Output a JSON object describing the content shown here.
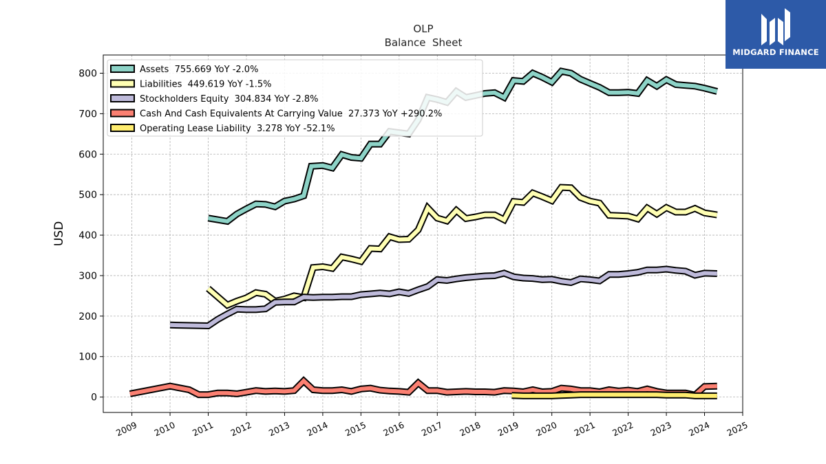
{
  "logo": {
    "text": "MIDGARD FINANCE"
  },
  "chart_data": {
    "type": "line",
    "title": "OLP",
    "subtitle": "Balance  Sheet",
    "xlabel": "",
    "ylabel": "USD",
    "xlim": [
      2008.25,
      2025.0
    ],
    "ylim": [
      -38,
      845
    ],
    "x_ticks": [
      "2009",
      "2010",
      "2011",
      "2012",
      "2013",
      "2014",
      "2015",
      "2016",
      "2017",
      "2018",
      "2019",
      "2020",
      "2021",
      "2022",
      "2023",
      "2024",
      "2025"
    ],
    "y_ticks": [
      "0",
      "100",
      "200",
      "300",
      "400",
      "500",
      "600",
      "700",
      "800"
    ],
    "grid": true,
    "legend_position": "top-left",
    "series": [
      {
        "name": "Assets",
        "legend": "Assets  755.669 YoY -2.0%",
        "color": "#8dd3c7",
        "points": [
          [
            2011.0,
            442
          ],
          [
            2011.5,
            434
          ],
          [
            2011.75,
            452
          ],
          [
            2012.0,
            465
          ],
          [
            2012.25,
            477
          ],
          [
            2012.5,
            476
          ],
          [
            2012.75,
            470
          ],
          [
            2013.0,
            484
          ],
          [
            2013.25,
            489
          ],
          [
            2013.5,
            497
          ],
          [
            2013.7,
            570
          ],
          [
            2014.0,
            572
          ],
          [
            2014.25,
            566
          ],
          [
            2014.5,
            599
          ],
          [
            2014.75,
            592
          ],
          [
            2015.0,
            590
          ],
          [
            2015.25,
            625
          ],
          [
            2015.5,
            625
          ],
          [
            2015.75,
            656
          ],
          [
            2016.0,
            653
          ],
          [
            2016.25,
            650
          ],
          [
            2016.5,
            685
          ],
          [
            2016.75,
            740
          ],
          [
            2017.0,
            735
          ],
          [
            2017.25,
            728
          ],
          [
            2017.5,
            755
          ],
          [
            2017.75,
            740
          ],
          [
            2018.0,
            745
          ],
          [
            2018.25,
            750
          ],
          [
            2018.5,
            752
          ],
          [
            2018.75,
            740
          ],
          [
            2019.0,
            782
          ],
          [
            2019.25,
            780
          ],
          [
            2019.5,
            800
          ],
          [
            2019.75,
            790
          ],
          [
            2020.0,
            778
          ],
          [
            2020.25,
            805
          ],
          [
            2020.5,
            800
          ],
          [
            2020.75,
            785
          ],
          [
            2021.0,
            775
          ],
          [
            2021.25,
            765
          ],
          [
            2021.5,
            752
          ],
          [
            2021.75,
            752
          ],
          [
            2022.0,
            753
          ],
          [
            2022.25,
            750
          ],
          [
            2022.5,
            782
          ],
          [
            2022.75,
            768
          ],
          [
            2023.0,
            784
          ],
          [
            2023.25,
            772
          ],
          [
            2023.5,
            770
          ],
          [
            2023.75,
            768
          ],
          [
            2024.0,
            763
          ],
          [
            2024.33,
            755
          ]
        ]
      },
      {
        "name": "Liabilities",
        "legend": "Liabilities  449.619 YoY -1.5%",
        "color": "#ffffb3",
        "points": [
          [
            2011.0,
            268
          ],
          [
            2011.5,
            227
          ],
          [
            2011.75,
            237
          ],
          [
            2012.0,
            245
          ],
          [
            2012.25,
            258
          ],
          [
            2012.5,
            254
          ],
          [
            2012.75,
            237
          ],
          [
            2013.0,
            242
          ],
          [
            2013.25,
            250
          ],
          [
            2013.5,
            246
          ],
          [
            2013.75,
            320
          ],
          [
            2014.0,
            322
          ],
          [
            2014.25,
            318
          ],
          [
            2014.5,
            346
          ],
          [
            2014.75,
            341
          ],
          [
            2015.0,
            335
          ],
          [
            2015.25,
            367
          ],
          [
            2015.5,
            366
          ],
          [
            2015.75,
            396
          ],
          [
            2016.0,
            389
          ],
          [
            2016.25,
            390
          ],
          [
            2016.5,
            413
          ],
          [
            2016.75,
            467
          ],
          [
            2017.0,
            442
          ],
          [
            2017.25,
            435
          ],
          [
            2017.5,
            461
          ],
          [
            2017.75,
            441
          ],
          [
            2018.0,
            445
          ],
          [
            2018.25,
            450
          ],
          [
            2018.5,
            450
          ],
          [
            2018.75,
            438
          ],
          [
            2019.0,
            483
          ],
          [
            2019.25,
            481
          ],
          [
            2019.5,
            504
          ],
          [
            2019.75,
            495
          ],
          [
            2020.0,
            485
          ],
          [
            2020.25,
            518
          ],
          [
            2020.5,
            517
          ],
          [
            2020.75,
            493
          ],
          [
            2021.0,
            484
          ],
          [
            2021.25,
            479
          ],
          [
            2021.5,
            449
          ],
          [
            2021.75,
            448
          ],
          [
            2022.0,
            447
          ],
          [
            2022.25,
            440
          ],
          [
            2022.5,
            467
          ],
          [
            2022.75,
            452
          ],
          [
            2023.0,
            468
          ],
          [
            2023.25,
            457
          ],
          [
            2023.5,
            457
          ],
          [
            2023.75,
            466
          ],
          [
            2024.0,
            455
          ],
          [
            2024.33,
            450
          ]
        ]
      },
      {
        "name": "Stockholders Equity",
        "legend": "Stockholders Equity  304.834 YoY -2.8%",
        "color": "#bebada",
        "points": [
          [
            2010.0,
            178
          ],
          [
            2011.0,
            176
          ],
          [
            2011.25,
            192
          ],
          [
            2011.5,
            205
          ],
          [
            2011.75,
            217
          ],
          [
            2012.0,
            216
          ],
          [
            2012.25,
            216
          ],
          [
            2012.5,
            218
          ],
          [
            2012.75,
            234
          ],
          [
            2013.0,
            235
          ],
          [
            2013.25,
            235
          ],
          [
            2013.5,
            247
          ],
          [
            2013.75,
            246
          ],
          [
            2014.0,
            247
          ],
          [
            2014.25,
            247
          ],
          [
            2014.5,
            248
          ],
          [
            2014.75,
            248
          ],
          [
            2015.0,
            253
          ],
          [
            2015.25,
            255
          ],
          [
            2015.5,
            257
          ],
          [
            2015.75,
            255
          ],
          [
            2016.0,
            260
          ],
          [
            2016.25,
            256
          ],
          [
            2016.5,
            265
          ],
          [
            2016.75,
            273
          ],
          [
            2017.0,
            290
          ],
          [
            2017.25,
            288
          ],
          [
            2017.5,
            292
          ],
          [
            2017.75,
            295
          ],
          [
            2018.0,
            297
          ],
          [
            2018.25,
            299
          ],
          [
            2018.5,
            300
          ],
          [
            2018.75,
            306
          ],
          [
            2019.0,
            297
          ],
          [
            2019.25,
            294
          ],
          [
            2019.5,
            293
          ],
          [
            2019.75,
            290
          ],
          [
            2020.0,
            291
          ],
          [
            2020.25,
            286
          ],
          [
            2020.5,
            283
          ],
          [
            2020.75,
            292
          ],
          [
            2021.0,
            290
          ],
          [
            2021.25,
            287
          ],
          [
            2021.5,
            303
          ],
          [
            2021.75,
            303
          ],
          [
            2022.0,
            305
          ],
          [
            2022.25,
            308
          ],
          [
            2022.5,
            314
          ],
          [
            2022.75,
            314
          ],
          [
            2023.0,
            316
          ],
          [
            2023.25,
            313
          ],
          [
            2023.5,
            311
          ],
          [
            2023.75,
            301
          ],
          [
            2024.0,
            306
          ],
          [
            2024.33,
            305
          ]
        ]
      },
      {
        "name": "Cash And Cash Equivalents At Carrying Value",
        "legend": "Cash And Cash Equivalents At Carrying Value  27.373 YoY +290.2%",
        "color": "#fb8072",
        "points": [
          [
            2008.95,
            8
          ],
          [
            2010.0,
            27
          ],
          [
            2010.5,
            18
          ],
          [
            2010.75,
            6
          ],
          [
            2011.0,
            6
          ],
          [
            2011.25,
            10
          ],
          [
            2011.5,
            10
          ],
          [
            2011.75,
            8
          ],
          [
            2012.0,
            12
          ],
          [
            2012.25,
            16
          ],
          [
            2012.5,
            14
          ],
          [
            2012.75,
            15
          ],
          [
            2013.0,
            14
          ],
          [
            2013.25,
            16
          ],
          [
            2013.5,
            40
          ],
          [
            2013.75,
            18
          ],
          [
            2014.0,
            16
          ],
          [
            2014.25,
            16
          ],
          [
            2014.5,
            18
          ],
          [
            2014.75,
            14
          ],
          [
            2015.0,
            20
          ],
          [
            2015.25,
            22
          ],
          [
            2015.5,
            17
          ],
          [
            2015.75,
            15
          ],
          [
            2016.0,
            14
          ],
          [
            2016.25,
            12
          ],
          [
            2016.5,
            35
          ],
          [
            2016.75,
            16
          ],
          [
            2017.0,
            16
          ],
          [
            2017.25,
            12
          ],
          [
            2017.5,
            13
          ],
          [
            2017.75,
            14
          ],
          [
            2018.0,
            13
          ],
          [
            2018.25,
            13
          ],
          [
            2018.5,
            12
          ],
          [
            2018.75,
            16
          ],
          [
            2019.0,
            15
          ],
          [
            2019.25,
            13
          ],
          [
            2019.5,
            18
          ],
          [
            2019.75,
            13
          ],
          [
            2020.0,
            14
          ],
          [
            2020.25,
            22
          ],
          [
            2020.5,
            20
          ],
          [
            2020.75,
            16
          ],
          [
            2021.0,
            16
          ],
          [
            2021.25,
            13
          ],
          [
            2021.5,
            18
          ],
          [
            2021.75,
            15
          ],
          [
            2022.0,
            17
          ],
          [
            2022.25,
            14
          ],
          [
            2022.5,
            20
          ],
          [
            2022.75,
            14
          ],
          [
            2023.0,
            10
          ],
          [
            2023.25,
            10
          ],
          [
            2023.5,
            10
          ],
          [
            2023.75,
            5
          ],
          [
            2024.0,
            26
          ],
          [
            2024.33,
            27
          ]
        ]
      },
      {
        "name": "Operating Lease Liability",
        "legend": "Operating Lease Liability  3.278 YoY -52.1%",
        "color": "#ffed6f",
        "points": [
          [
            2018.95,
            4
          ],
          [
            2019.25,
            3
          ],
          [
            2019.5,
            3
          ],
          [
            2019.75,
            3
          ],
          [
            2020.0,
            3
          ],
          [
            2020.25,
            4
          ],
          [
            2020.5,
            5
          ],
          [
            2020.75,
            6
          ],
          [
            2021.0,
            6
          ],
          [
            2021.25,
            6
          ],
          [
            2021.5,
            6
          ],
          [
            2021.75,
            6
          ],
          [
            2022.0,
            6
          ],
          [
            2022.25,
            6
          ],
          [
            2022.5,
            6
          ],
          [
            2022.75,
            6
          ],
          [
            2023.0,
            5
          ],
          [
            2023.25,
            5
          ],
          [
            2023.5,
            5
          ],
          [
            2023.75,
            3
          ],
          [
            2024.0,
            3
          ],
          [
            2024.33,
            3
          ]
        ]
      }
    ]
  }
}
